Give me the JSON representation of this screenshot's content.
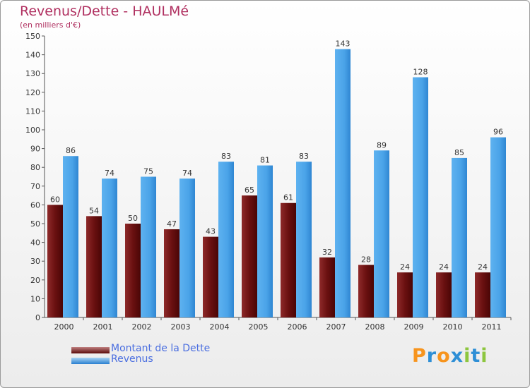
{
  "chart_data": {
    "type": "bar",
    "title": "Revenus/Dette - HAULMé",
    "subtitle": "(en milliers d'€)",
    "xlabel": "",
    "ylabel": "",
    "ylim": [
      0,
      150
    ],
    "yticks": [
      "0",
      "10",
      "20",
      "30",
      "40",
      "50",
      "60",
      "70",
      "80",
      "90",
      "100",
      "110",
      "120",
      "130",
      "140",
      "150"
    ],
    "categories": [
      "2000",
      "2001",
      "2002",
      "2003",
      "2004",
      "2005",
      "2006",
      "2007",
      "2008",
      "2009",
      "2010",
      "2011"
    ],
    "series": [
      {
        "name": "Montant de la Dette",
        "color": "#7a1a1a",
        "values": [
          60,
          54,
          50,
          47,
          43,
          65,
          61,
          32,
          28,
          24,
          24,
          24
        ]
      },
      {
        "name": "Revenus",
        "color": "#4aa3e8",
        "values": [
          86,
          74,
          75,
          74,
          83,
          81,
          83,
          143,
          89,
          128,
          85,
          96
        ]
      }
    ],
    "legend_position": "bottom-left",
    "grid": false
  },
  "logo": {
    "letters": [
      "P",
      "r",
      "o",
      "x",
      "i",
      "t",
      "i"
    ],
    "colors": [
      "#f7941d",
      "#2e8fd6",
      "#f7941d",
      "#2e8fd6",
      "#8dc63f",
      "#2e8fd6",
      "#8dc63f"
    ]
  }
}
